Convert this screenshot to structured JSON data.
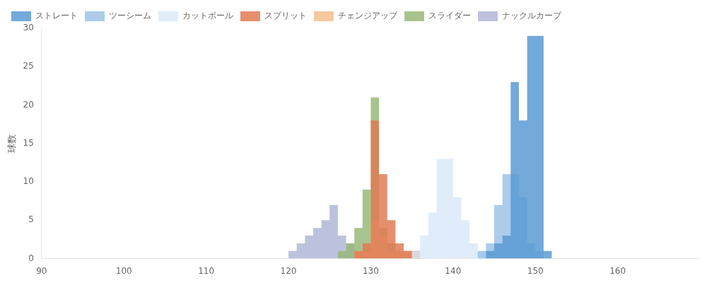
{
  "chart_data": {
    "type": "histogram",
    "ylabel": "球数",
    "bins": [
      90,
      91,
      92,
      93,
      94,
      95,
      96,
      97,
      98,
      99,
      100,
      101,
      102,
      103,
      104,
      105,
      106,
      107,
      108,
      109,
      110,
      111,
      112,
      113,
      114,
      115,
      116,
      117,
      118,
      119,
      120,
      121,
      122,
      123,
      124,
      125,
      126,
      127,
      128,
      129,
      130,
      131,
      132,
      133,
      134,
      135,
      136,
      137,
      138,
      139,
      140,
      141,
      142,
      143,
      144,
      145,
      146,
      147,
      148,
      149,
      150,
      151,
      152,
      153,
      154,
      155,
      156,
      157,
      158,
      159,
      160,
      161,
      162,
      163,
      164,
      165,
      166,
      167,
      168,
      169,
      170
    ],
    "xlim": [
      90,
      170
    ],
    "ylim": [
      0,
      30
    ],
    "xticks": [
      90,
      100,
      110,
      120,
      130,
      140,
      150,
      160
    ],
    "yticks": [
      0,
      5,
      10,
      15,
      20,
      25,
      30
    ],
    "grid": false,
    "legend": "upper left",
    "series": [
      {
        "name": "ストレート",
        "color": "#5b9bd5",
        "values": [
          0,
          0,
          0,
          0,
          0,
          0,
          0,
          0,
          0,
          0,
          0,
          0,
          0,
          0,
          0,
          0,
          0,
          0,
          0,
          0,
          0,
          0,
          0,
          0,
          0,
          0,
          0,
          0,
          0,
          0,
          0,
          0,
          0,
          0,
          0,
          0,
          0,
          0,
          0,
          0,
          0,
          0,
          0,
          0,
          0,
          0,
          0,
          0,
          0,
          0,
          0,
          0,
          0,
          0,
          1,
          2,
          3,
          23,
          18,
          29,
          29,
          1,
          0,
          0,
          0,
          0,
          0,
          0,
          0,
          0,
          0,
          0,
          0,
          0,
          0,
          0,
          0,
          0,
          0,
          0
        ]
      },
      {
        "name": "ツーシーム",
        "color": "#9dc3e6",
        "values": [
          0,
          0,
          0,
          0,
          0,
          0,
          0,
          0,
          0,
          0,
          0,
          0,
          0,
          0,
          0,
          0,
          0,
          0,
          0,
          0,
          0,
          0,
          0,
          0,
          0,
          0,
          0,
          0,
          0,
          0,
          0,
          0,
          0,
          0,
          0,
          0,
          0,
          0,
          0,
          0,
          0,
          0,
          0,
          0,
          0,
          0,
          0,
          0,
          0,
          0,
          0,
          0,
          0,
          1,
          2,
          7,
          11,
          11,
          8,
          2,
          1,
          0,
          0,
          0,
          0,
          0,
          0,
          0,
          0,
          0,
          0,
          0,
          0,
          0,
          0,
          0,
          0,
          0,
          0,
          0
        ]
      },
      {
        "name": "カットボール",
        "color": "#dae9f8",
        "values": [
          0,
          0,
          0,
          0,
          0,
          0,
          0,
          0,
          0,
          0,
          0,
          0,
          0,
          0,
          0,
          0,
          0,
          0,
          0,
          0,
          0,
          0,
          0,
          0,
          0,
          0,
          0,
          0,
          0,
          0,
          0,
          0,
          0,
          0,
          0,
          0,
          0,
          0,
          0,
          0,
          0,
          0,
          0,
          0,
          0,
          1,
          3,
          6,
          13,
          13,
          8,
          5,
          2,
          1,
          1,
          0,
          0,
          0,
          0,
          0,
          0,
          0,
          0,
          0,
          0,
          0,
          0,
          0,
          0,
          0,
          0,
          0,
          0,
          0,
          0,
          0,
          0,
          0,
          0,
          0
        ]
      },
      {
        "name": "スプリット",
        "color": "#e07b54",
        "values": [
          0,
          0,
          0,
          0,
          0,
          0,
          0,
          0,
          0,
          0,
          0,
          0,
          0,
          0,
          0,
          0,
          0,
          0,
          0,
          0,
          0,
          0,
          0,
          0,
          0,
          0,
          0,
          0,
          0,
          0,
          0,
          0,
          0,
          0,
          0,
          0,
          0,
          0,
          1,
          2,
          18,
          11,
          5,
          2,
          1,
          1,
          0,
          0,
          0,
          0,
          0,
          0,
          0,
          0,
          0,
          0,
          0,
          0,
          0,
          0,
          0,
          0,
          0,
          0,
          0,
          0,
          0,
          0,
          0,
          0,
          0,
          0,
          0,
          0,
          0,
          0,
          0,
          0,
          0,
          0
        ]
      },
      {
        "name": "チェンジアップ",
        "color": "#f4c090",
        "values": [
          0,
          0,
          0,
          0,
          0,
          0,
          0,
          0,
          0,
          0,
          0,
          0,
          0,
          0,
          0,
          0,
          0,
          0,
          0,
          0,
          0,
          0,
          0,
          0,
          0,
          0,
          0,
          0,
          0,
          0,
          0,
          0,
          0,
          0,
          0,
          0,
          0,
          0,
          1,
          1,
          5,
          3,
          1,
          1,
          1,
          1,
          0,
          0,
          0,
          0,
          0,
          0,
          0,
          0,
          0,
          0,
          0,
          0,
          0,
          0,
          0,
          0,
          0,
          0,
          0,
          0,
          0,
          0,
          0,
          0,
          0,
          0,
          0,
          0,
          0,
          0,
          0,
          0,
          0,
          0
        ]
      },
      {
        "name": "スライダー",
        "color": "#9ab87a",
        "values": [
          0,
          0,
          0,
          0,
          0,
          0,
          0,
          0,
          0,
          0,
          0,
          0,
          0,
          0,
          0,
          0,
          0,
          0,
          0,
          0,
          0,
          0,
          0,
          0,
          0,
          0,
          0,
          0,
          0,
          0,
          0,
          0,
          0,
          0,
          0,
          0,
          1,
          2,
          4,
          9,
          21,
          4,
          2,
          1,
          0,
          0,
          0,
          0,
          0,
          0,
          0,
          0,
          0,
          0,
          0,
          0,
          0,
          0,
          0,
          0,
          0,
          0,
          0,
          0,
          0,
          0,
          0,
          0,
          0,
          0,
          0,
          0,
          0,
          0,
          0,
          0,
          0,
          0,
          0,
          0
        ]
      },
      {
        "name": "ナックルカーブ",
        "color": "#b0b7d8",
        "values": [
          0,
          0,
          0,
          0,
          0,
          0,
          0,
          0,
          0,
          0,
          0,
          0,
          0,
          0,
          0,
          0,
          0,
          0,
          0,
          0,
          0,
          0,
          0,
          0,
          0,
          0,
          0,
          0,
          0,
          0,
          1,
          2,
          3,
          4,
          5,
          7,
          3,
          2,
          0,
          0,
          0,
          0,
          0,
          0,
          0,
          0,
          0,
          0,
          0,
          0,
          0,
          0,
          0,
          0,
          0,
          0,
          0,
          0,
          0,
          0,
          0,
          0,
          0,
          0,
          0,
          0,
          0,
          0,
          0,
          0,
          0,
          0,
          0,
          0,
          0,
          0,
          0,
          0,
          0,
          0
        ]
      }
    ]
  }
}
